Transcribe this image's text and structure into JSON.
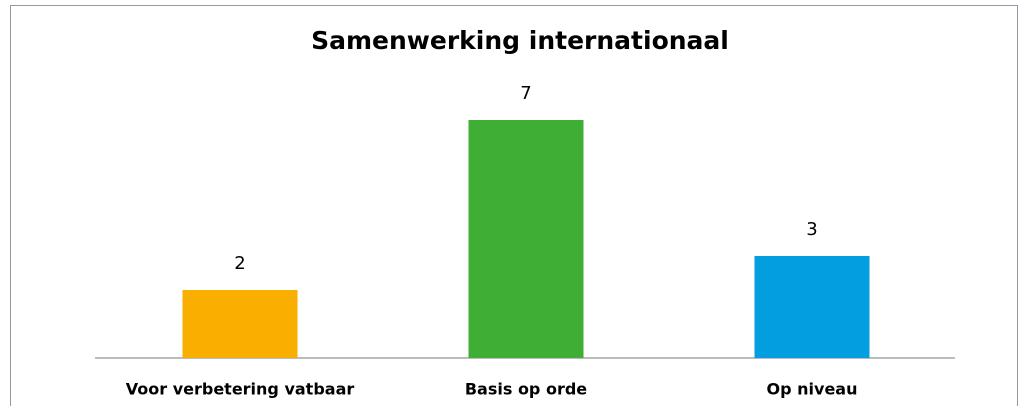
{
  "chart_data": {
    "type": "bar",
    "title": "Samenwerking internationaal",
    "categories": [
      "Voor verbetering vatbaar",
      "Basis op orde",
      "Op niveau"
    ],
    "values": [
      2,
      7,
      3
    ],
    "colors": [
      "#f9ae00",
      "#3fae35",
      "#039ee0"
    ]
  }
}
